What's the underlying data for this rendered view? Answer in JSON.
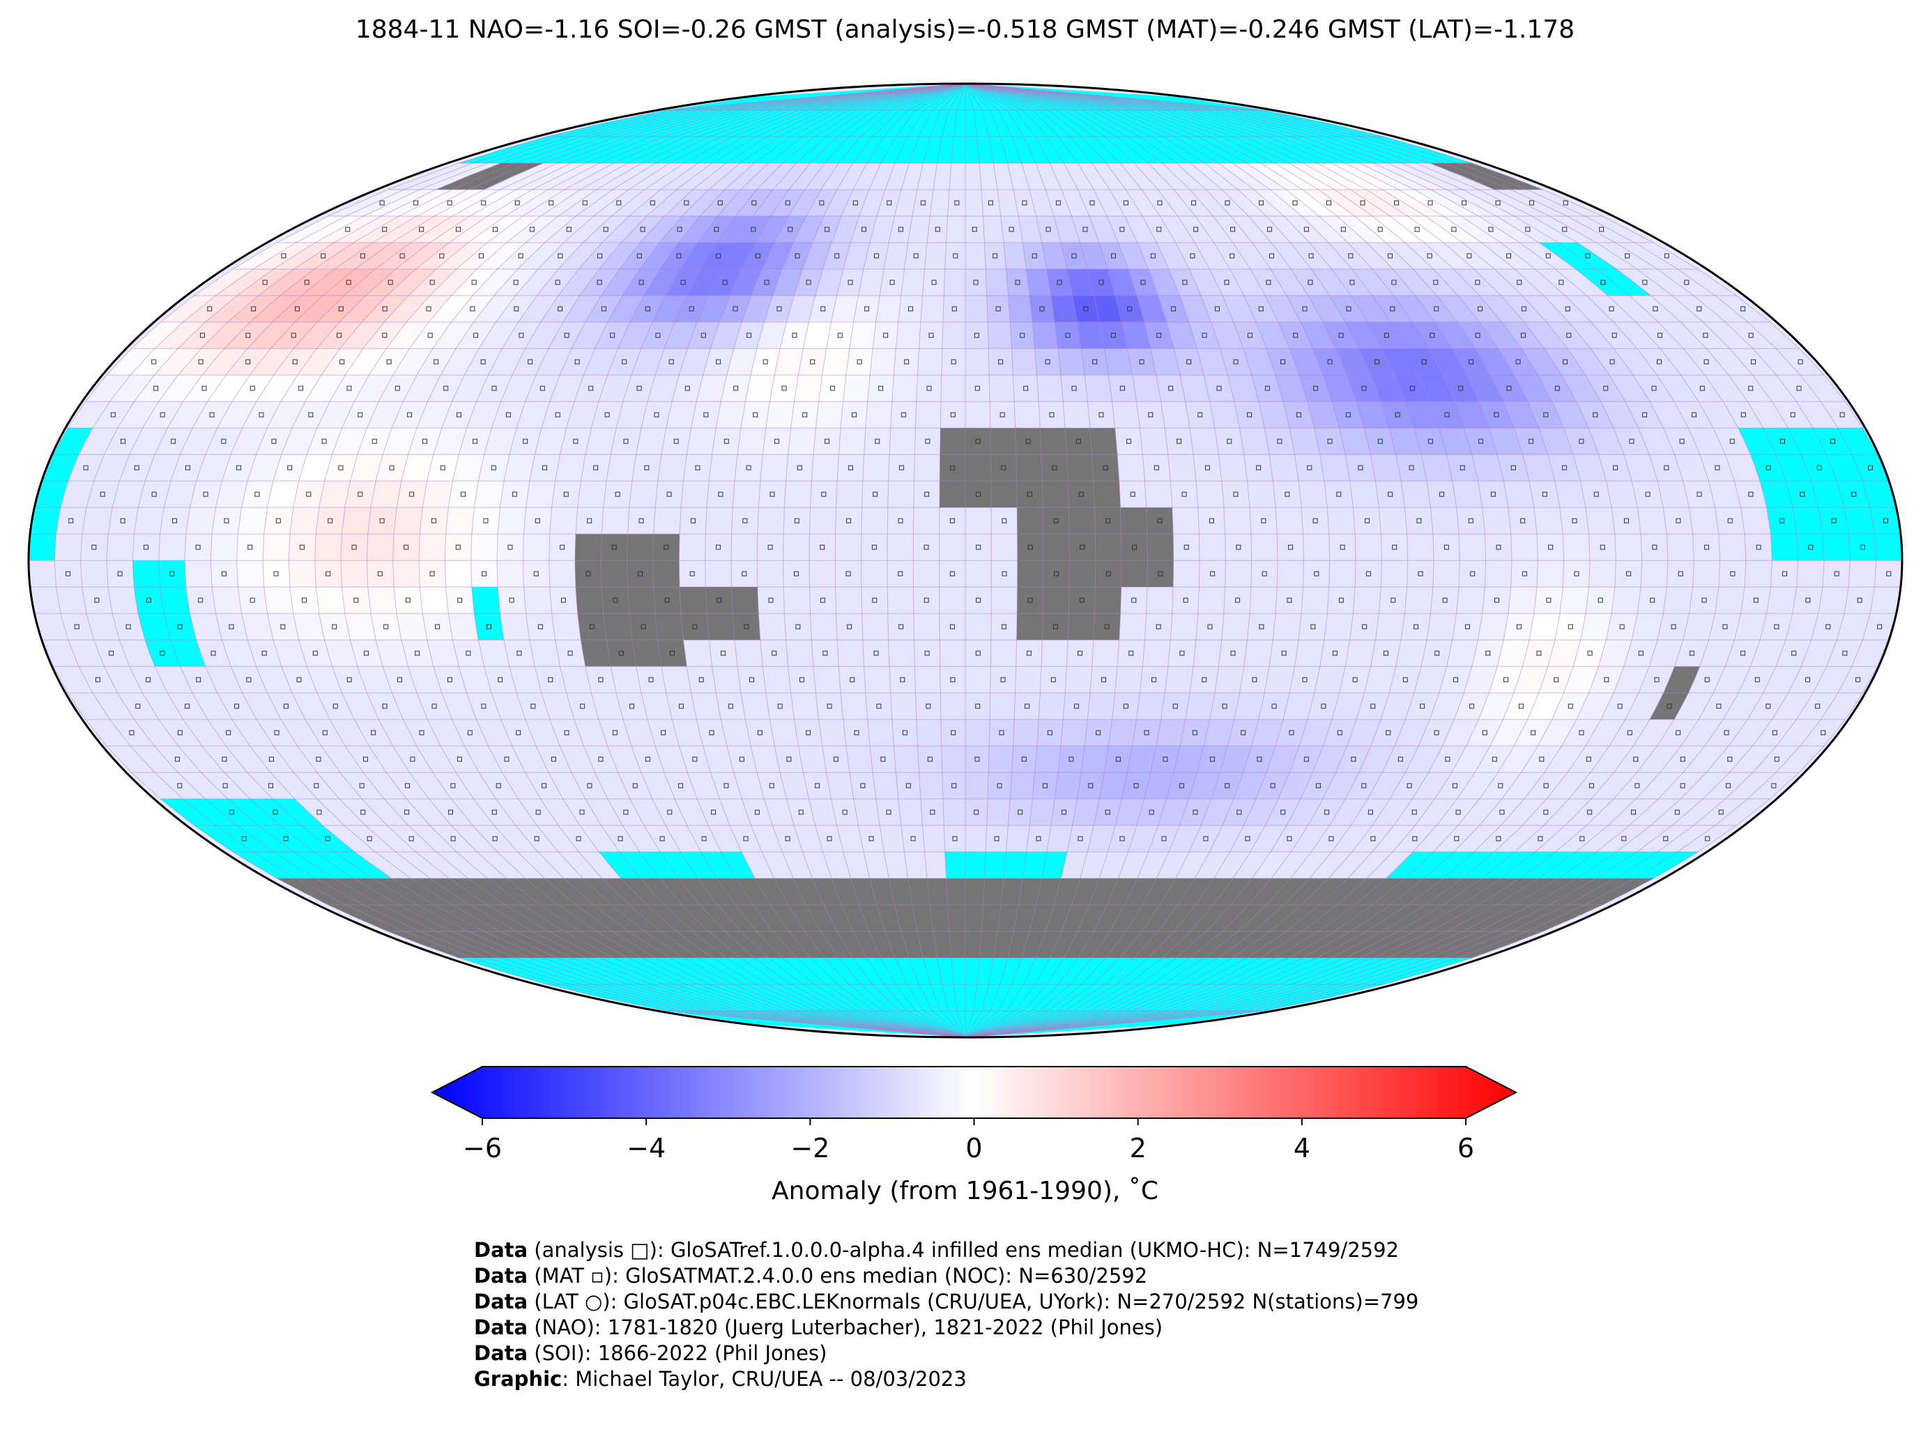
{
  "title": "1884-11 NAO=-1.16 SOI=-0.26 GMST (analysis)=-0.518 GMST (MAT)=-0.246 GMST (LAT)=-1.178",
  "map": {
    "missing_color": "#00ffff",
    "land_nodata_color": "#757575",
    "grid_line_color": "#b07cc6"
  },
  "colorbar": {
    "label": "Anomaly (from 1961-1990), ˚C",
    "ticks": [
      "−6",
      "−4",
      "−2",
      "0",
      "2",
      "4",
      "6"
    ],
    "range": [
      -6,
      6
    ],
    "colors": {
      "min": "#0000ff",
      "mid": "#ffffff",
      "max": "#ff0000"
    }
  },
  "credits": [
    {
      "bold": "Data",
      "text": " (analysis □): GloSATref.1.0.0.0-alpha.4 infilled ens median (UKMO-HC): N=1749/2592"
    },
    {
      "bold": "Data",
      "text": " (MAT ▫): GloSATMAT.2.4.0.0 ens median (NOC): N=630/2592"
    },
    {
      "bold": "Data",
      "text": " (LAT ○): GloSAT.p04c.EBC.LEKnormals (CRU/UEA, UYork): N=270/2592 N(stations)=799"
    },
    {
      "bold": "Data",
      "text": " (NAO): 1781-1820 (Juerg Luterbacher), 1821-2022 (Phil Jones)"
    },
    {
      "bold": "Data",
      "text": " (SOI): 1866-2022 (Phil Jones)"
    },
    {
      "bold": "Graphic",
      "text": ": Michael Taylor, CRU/UEA -- 08/03/2023"
    }
  ]
}
